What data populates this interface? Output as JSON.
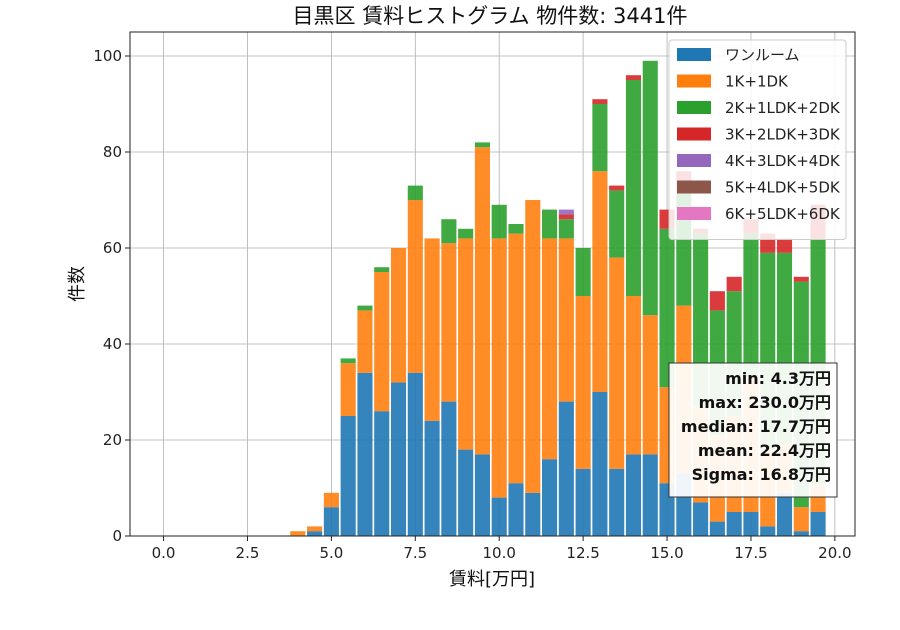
{
  "chart_data": {
    "type": "bar",
    "stacked": true,
    "title": "目黒区 賃料ヒストグラム 物件数: 3441件",
    "xlabel": "賃料[万円]",
    "ylabel": "件数",
    "xlim": [
      -1.0,
      20.6
    ],
    "ylim": [
      0,
      105
    ],
    "xticks": [
      "0.0",
      "2.5",
      "5.0",
      "7.5",
      "10.0",
      "12.5",
      "15.0",
      "17.5",
      "20.0"
    ],
    "yticks": [
      "0",
      "20",
      "40",
      "60",
      "80",
      "100"
    ],
    "grid": true,
    "legend_position": "top-right",
    "bin_width": 0.5,
    "x": [
      4.0,
      4.5,
      5.0,
      5.5,
      6.0,
      6.5,
      7.0,
      7.5,
      8.0,
      8.5,
      9.0,
      9.5,
      10.0,
      10.5,
      11.0,
      11.5,
      12.0,
      12.5,
      13.0,
      13.5,
      14.0,
      14.5,
      15.0,
      15.5,
      16.0,
      16.5,
      17.0,
      17.5,
      18.0,
      18.5,
      19.0,
      19.5
    ],
    "series": [
      {
        "name": "ワンルーム",
        "color": "#1f77b4",
        "values": [
          0,
          1,
          6,
          25,
          34,
          26,
          32,
          34,
          24,
          28,
          18,
          17,
          8,
          11,
          9,
          16,
          28,
          14,
          30,
          14,
          17,
          17,
          11,
          13,
          7,
          3,
          5,
          5,
          2,
          9,
          1,
          5
        ]
      },
      {
        "name": "1K+1DK",
        "color": "#ff7f0e",
        "values": [
          1,
          1,
          3,
          11,
          13,
          29,
          28,
          36,
          38,
          33,
          44,
          64,
          54,
          52,
          61,
          46,
          34,
          36,
          46,
          44,
          33,
          29,
          20,
          35,
          20,
          18,
          20,
          28,
          16,
          10,
          5,
          6
        ]
      },
      {
        "name": "2K+1LDK+2DK",
        "color": "#2ca02c",
        "values": [
          0,
          0,
          0,
          1,
          1,
          1,
          0,
          3,
          0,
          5,
          2,
          1,
          7,
          2,
          0,
          6,
          4,
          10,
          14,
          14,
          45,
          53,
          33,
          25,
          36,
          26,
          26,
          30,
          41,
          40,
          47,
          51
        ]
      },
      {
        "name": "3K+2LDK+3DK",
        "color": "#d62728",
        "values": [
          0,
          0,
          0,
          0,
          0,
          0,
          0,
          0,
          0,
          0,
          0,
          0,
          0,
          0,
          0,
          0,
          1,
          0,
          1,
          1,
          1,
          0,
          4,
          3,
          1,
          4,
          3,
          3,
          4,
          3,
          1,
          7
        ]
      },
      {
        "name": "4K+3LDK+4DK",
        "color": "#9467bd",
        "values": [
          0,
          0,
          0,
          0,
          0,
          0,
          0,
          0,
          0,
          0,
          0,
          0,
          0,
          0,
          0,
          0,
          1,
          0,
          0,
          0,
          0,
          0,
          0,
          0,
          0,
          0,
          0,
          0,
          0,
          0,
          0,
          0
        ]
      },
      {
        "name": "5K+4LDK+5DK",
        "color": "#8c564b",
        "values": [
          0,
          0,
          0,
          0,
          0,
          0,
          0,
          0,
          0,
          0,
          0,
          0,
          0,
          0,
          0,
          0,
          0,
          0,
          0,
          0,
          0,
          0,
          0,
          0,
          0,
          0,
          0,
          0,
          0,
          0,
          0,
          0
        ]
      },
      {
        "name": "6K+5LDK+6DK",
        "color": "#e377c2",
        "values": [
          0,
          0,
          0,
          0,
          0,
          0,
          0,
          0,
          0,
          0,
          0,
          0,
          0,
          0,
          0,
          0,
          0,
          0,
          0,
          0,
          0,
          0,
          0,
          0,
          0,
          0,
          0,
          0,
          0,
          0,
          0,
          0
        ]
      }
    ],
    "stats": [
      "min: 4.3万円",
      "max: 230.0万円",
      "median: 17.7万円",
      "mean: 22.4万円",
      "Sigma: 16.8万円"
    ]
  }
}
